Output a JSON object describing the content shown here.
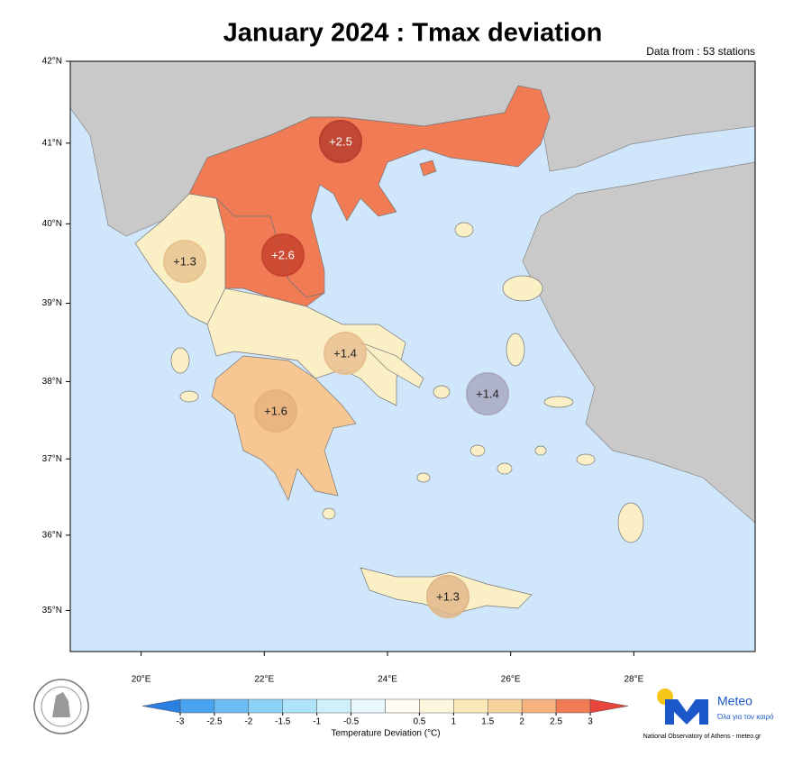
{
  "title": "January 2024 : Tmax deviation",
  "source_note": "Data from : 53 stations",
  "lat_ticks": [
    {
      "value": 42,
      "label": "42°N"
    },
    {
      "value": 41,
      "label": "41°N"
    },
    {
      "value": 40,
      "label": "40°N"
    },
    {
      "value": 39,
      "label": "39°N"
    },
    {
      "value": 38,
      "label": "38°N"
    },
    {
      "value": 37,
      "label": "37°N"
    },
    {
      "value": 36,
      "label": "36°N"
    },
    {
      "value": 35,
      "label": "35°N"
    }
  ],
  "lon_ticks": [
    {
      "value": 20,
      "label": "20°E"
    },
    {
      "value": 22,
      "label": "22°E"
    },
    {
      "value": 24,
      "label": "24°E"
    },
    {
      "value": 26,
      "label": "26°E"
    },
    {
      "value": 28,
      "label": "28°E"
    }
  ],
  "latlim": [
    34.45,
    42
  ],
  "lonlim": [
    18.85,
    29.97
  ],
  "regions": {
    "values": [
      2.5,
      2.6,
      1.3,
      1.4,
      1.6,
      1.4,
      1.3
    ],
    "value_labels": [
      "+2.5",
      "+2.6",
      "+1.3",
      "+1.4",
      "+1.6",
      "+1.4",
      "+1.3"
    ]
  },
  "colorbar": {
    "label": "Temperature Deviation (°C)",
    "lim": [
      -3,
      3
    ],
    "ticks": [
      -3,
      -2.5,
      -2,
      -1.5,
      -1,
      -0.5,
      0.5,
      1,
      1.5,
      2,
      2.5,
      3
    ],
    "colors": [
      "#4aa3ef",
      "#6cbdf4",
      "#8dd3f7",
      "#aee4fa",
      "#cdf0fb",
      "#e8f8fc",
      "#fffdf4",
      "#fdf6dc",
      "#fbe9b7",
      "#f7d49b",
      "#f5b27e",
      "#f07b55"
    ],
    "under_color": "#2b7fe0",
    "over_color": "#e8453c"
  },
  "logo": {
    "name": "Meteo",
    "tagline": "Όλα για τον καιρό",
    "credit": "National Observatory of Athens - meteo.gr"
  }
}
